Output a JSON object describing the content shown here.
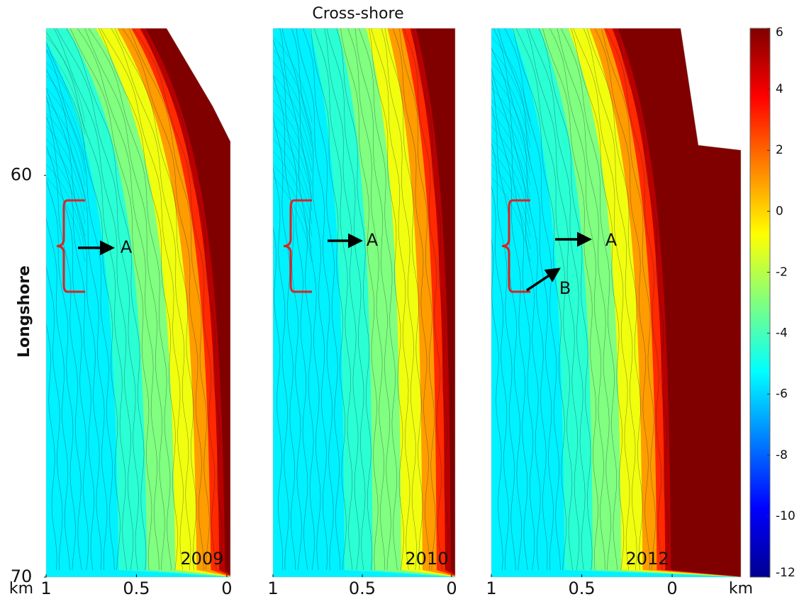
{
  "chart_data": {
    "type": "contour",
    "x_label": "Cross-shore",
    "y_label": "Longshore",
    "unit_label": "km",
    "colormap": "jet",
    "clim": [
      -12,
      6
    ],
    "cticks": [
      6,
      4,
      2,
      0,
      -2,
      -4,
      -6,
      -8,
      -10,
      -12
    ],
    "ylim": [
      56.34,
      70
    ],
    "yticks": [
      60,
      70
    ],
    "xticks": [
      1,
      0.5,
      0
    ],
    "panels": [
      {
        "name": "2009",
        "xlim": [
          1,
          -0.02
        ],
        "annotations": [
          "A"
        ]
      },
      {
        "name": "2010",
        "xlim": [
          1,
          -0.02
        ],
        "annotations": [
          "A"
        ]
      },
      {
        "name": "2012",
        "xlim": [
          1,
          -0.38
        ],
        "annotations": [
          "A",
          "B"
        ]
      }
    ]
  }
}
